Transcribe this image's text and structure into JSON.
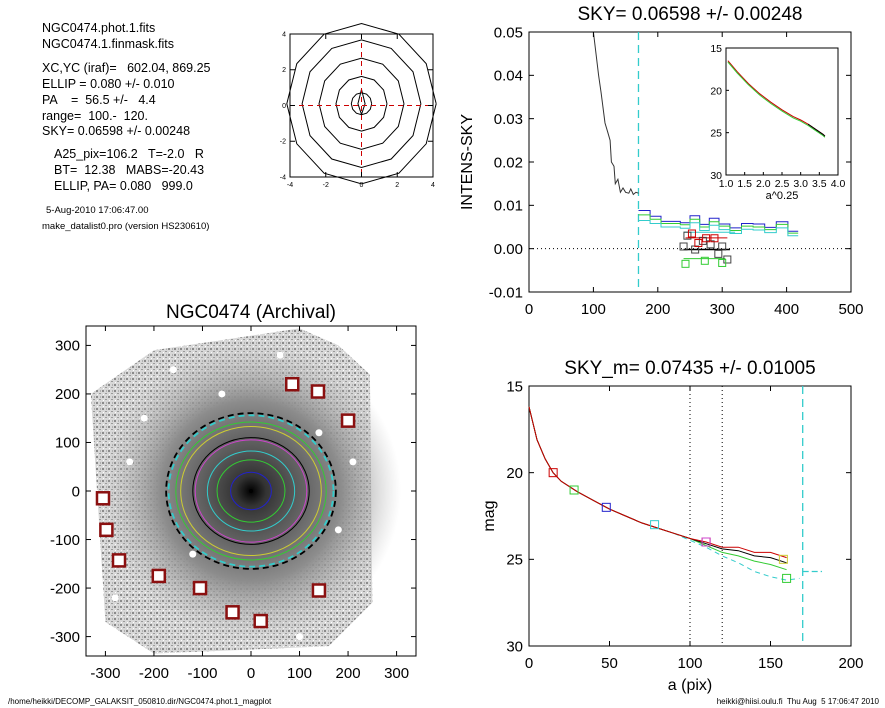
{
  "header_info": {
    "lines": [
      "NGC0474.phot.1.fits",
      "NGC0474.1.finmask.fits",
      "XC,YC (iraf)=   602.04, 869.25",
      "ELLIP = 0.080 +/- 0.010",
      "PA    =  56.5 +/-   4.4",
      "range=  100.-  120.",
      "SKY= 0.06598 +/- 0.00248",
      "A25_pix=106.2   T=-2.0   R",
      "BT=  12.38   MABS=-20.43",
      "ELLIP, PA= 0.080   999.0"
    ],
    "date": "5-Aug-2010 17:06:47.00",
    "program": "make_datalist0.pro (version HS230610)"
  },
  "footer": {
    "left": "/home/heikki/DECOMP_GALAKSIT_050810.dir/NGC0474.phot.1_magplot",
    "right": "heikki@hiisi.oulu.fi  Thu Aug  5 17:06:47 2010"
  },
  "colors": {
    "black": "#000000",
    "red": "#cc0000",
    "green": "#33cc33",
    "blue": "#2222cc",
    "cyan": "#33cccc",
    "magenta": "#cc44cc",
    "yellow": "#cccc33",
    "darkred": "#8b1010",
    "gray": "#777777"
  },
  "chart_data": [
    {
      "id": "contour",
      "type": "contour",
      "xlim": [
        -4,
        4
      ],
      "ylim": [
        -4,
        4
      ],
      "xticks": [
        "-4",
        "-2",
        "0",
        "2",
        "4"
      ],
      "yticks": [
        "-4",
        "-2",
        "0",
        "2",
        "4"
      ],
      "contour_radii": [
        0.6,
        1.5,
        2.5,
        3.5,
        4.4
      ]
    },
    {
      "id": "sky",
      "type": "line",
      "title": "SKY= 0.06598 +/- 0.00248",
      "ylabel": "INTENS-SKY",
      "xlim": [
        0,
        500
      ],
      "ylim": [
        -0.01,
        0.05
      ],
      "xticks": [
        "0",
        "100",
        "200",
        "300",
        "400",
        "500"
      ],
      "yticks": [
        "-0.01",
        "0.00",
        "0.01",
        "0.02",
        "0.03",
        "0.04",
        "0.05"
      ],
      "vline": 170,
      "profile": [
        [
          100,
          0.05
        ],
        [
          108,
          0.04
        ],
        [
          112,
          0.036
        ],
        [
          118,
          0.029
        ],
        [
          122,
          0.027
        ],
        [
          126,
          0.025
        ],
        [
          128,
          0.02
        ],
        [
          132,
          0.019
        ],
        [
          134,
          0.015
        ],
        [
          138,
          0.016
        ],
        [
          142,
          0.013
        ],
        [
          146,
          0.014
        ],
        [
          150,
          0.013
        ],
        [
          155,
          0.0128
        ],
        [
          158,
          0.0138
        ],
        [
          162,
          0.0125
        ],
        [
          166,
          0.013
        ],
        [
          170,
          0.0128
        ]
      ],
      "steps": {
        "blue": [
          [
            170,
            0.0088
          ],
          [
            188,
            0.0075
          ],
          [
            205,
            0.0063
          ],
          [
            220,
            0.0063
          ],
          [
            235,
            0.006
          ],
          [
            250,
            0.0076
          ],
          [
            265,
            0.0056
          ],
          [
            280,
            0.007
          ],
          [
            295,
            0.0057
          ],
          [
            312,
            0.0048
          ],
          [
            330,
            0.0058
          ],
          [
            348,
            0.0057
          ],
          [
            366,
            0.0049
          ],
          [
            384,
            0.0062
          ],
          [
            402,
            0.004
          ],
          [
            418,
            0.004
          ]
        ],
        "green": [
          [
            170,
            0.0078
          ],
          [
            188,
            0.0068
          ],
          [
            205,
            0.0058
          ],
          [
            220,
            0.0058
          ],
          [
            235,
            0.0055
          ],
          [
            250,
            0.0068
          ],
          [
            265,
            0.005
          ],
          [
            280,
            0.0062
          ],
          [
            295,
            0.0052
          ],
          [
            312,
            0.0042
          ],
          [
            330,
            0.0052
          ],
          [
            348,
            0.005
          ],
          [
            366,
            0.0044
          ],
          [
            384,
            0.0056
          ],
          [
            402,
            0.0036
          ],
          [
            418,
            0.0036
          ]
        ],
        "cyan": [
          [
            170,
            0.0065
          ],
          [
            188,
            0.0058
          ],
          [
            205,
            0.005
          ],
          [
            220,
            0.005
          ],
          [
            235,
            0.0047
          ],
          [
            250,
            0.006
          ],
          [
            265,
            0.0042
          ],
          [
            280,
            0.0054
          ],
          [
            295,
            0.0044
          ],
          [
            312,
            0.0035
          ],
          [
            330,
            0.0045
          ],
          [
            348,
            0.0043
          ],
          [
            366,
            0.0037
          ],
          [
            384,
            0.0048
          ],
          [
            402,
            0.003
          ],
          [
            418,
            0.003
          ]
        ]
      },
      "squares": {
        "black": [
          [
            240,
            0.0005
          ],
          [
            246,
            0.003
          ],
          [
            258,
            -0.0002
          ],
          [
            270,
            0.0018
          ],
          [
            282,
            0.001
          ],
          [
            294,
            -0.0012
          ],
          [
            300,
            0.0005
          ],
          [
            308,
            -0.0025
          ]
        ],
        "red": [
          [
            253,
            0.0035
          ],
          [
            263,
            0.0013
          ],
          [
            275,
            0.0024
          ],
          [
            288,
            0.0024
          ]
        ],
        "green": [
          [
            243,
            -0.0035
          ],
          [
            273,
            -0.0028
          ],
          [
            300,
            -0.0033
          ]
        ]
      },
      "hlines": {
        "red": [
          [
            243,
            308,
            0.0025
          ]
        ],
        "black": [
          [
            240,
            312,
            -0.0002
          ]
        ],
        "green": [
          [
            240,
            305,
            -0.0023
          ]
        ],
        "cyan": [
          [
            240,
            320,
            0.0038
          ]
        ]
      },
      "inset": {
        "xlim": [
          1.0,
          4.0
        ],
        "ylim": [
          15,
          30
        ],
        "xticks": [
          "1.0",
          "1.5",
          "2.0",
          "2.5",
          "3.0",
          "3.5",
          "4.0"
        ],
        "yticks": [
          "15",
          "20",
          "25",
          "30"
        ],
        "xlabel": "a^0.25",
        "curve": [
          [
            1.05,
            16.5
          ],
          [
            1.3,
            17.8
          ],
          [
            1.6,
            19.2
          ],
          [
            1.9,
            20.4
          ],
          [
            2.2,
            21.4
          ],
          [
            2.5,
            22.3
          ],
          [
            2.8,
            23.1
          ],
          [
            3.0,
            23.5
          ],
          [
            3.2,
            24.0
          ],
          [
            3.4,
            24.6
          ],
          [
            3.6,
            25.2
          ],
          [
            3.65,
            25.4
          ]
        ]
      }
    },
    {
      "id": "image",
      "type": "image",
      "title": "NGC0474 (Archival)",
      "xlim": [
        -340,
        340
      ],
      "ylim": [
        -340,
        340
      ],
      "xticks": [
        "-300",
        "-200",
        "-100",
        "0",
        "100",
        "200",
        "300"
      ],
      "yticks": [
        "-300",
        "-200",
        "-100",
        "0",
        "100",
        "200",
        "300"
      ],
      "ellipses": [
        {
          "color": "blue",
          "r": 42
        },
        {
          "color": "green",
          "r": 70
        },
        {
          "color": "cyan",
          "r": 90
        },
        {
          "color": "magenta",
          "r": 115
        },
        {
          "color": "black",
          "r": 120
        },
        {
          "color": "yellow",
          "r": 145
        },
        {
          "color": "green",
          "r": 155
        },
        {
          "color": "cyan",
          "r": 170,
          "dashed": true
        },
        {
          "color": "black",
          "r": 175,
          "dashed": true
        }
      ],
      "markers": [
        [
          85,
          220
        ],
        [
          138,
          205
        ],
        [
          200,
          145
        ],
        [
          -305,
          -15
        ],
        [
          -298,
          -80
        ],
        [
          -272,
          -143
        ],
        [
          -190,
          -175
        ],
        [
          -105,
          -200
        ],
        [
          -38,
          -250
        ],
        [
          20,
          -268
        ],
        [
          140,
          -205
        ]
      ]
    },
    {
      "id": "mag",
      "type": "line",
      "title": "SKY_m=  0.07435 +/- 0.01005",
      "xlabel": "a (pix)",
      "ylabel": "mag",
      "xlim": [
        0,
        200
      ],
      "ylim": [
        30,
        15
      ],
      "xticks": [
        "0",
        "50",
        "100",
        "150",
        "200"
      ],
      "yticks": [
        "15",
        "20",
        "25",
        "30"
      ],
      "vlines_dotted": [
        100,
        120
      ],
      "vline_dashed": 170,
      "cyan_seg": [
        [
          170,
          25.7
        ],
        [
          182,
          25.7
        ]
      ],
      "curves": {
        "black": [
          [
            0,
            16.2
          ],
          [
            5,
            18.1
          ],
          [
            10,
            19.2
          ],
          [
            15,
            20.0
          ],
          [
            20,
            20.5
          ],
          [
            30,
            21.1
          ],
          [
            40,
            21.6
          ],
          [
            50,
            22.1
          ],
          [
            60,
            22.5
          ],
          [
            70,
            22.9
          ],
          [
            80,
            23.2
          ],
          [
            90,
            23.5
          ],
          [
            100,
            23.8
          ],
          [
            110,
            24.1
          ],
          [
            120,
            24.4
          ],
          [
            130,
            24.5
          ],
          [
            140,
            24.8
          ],
          [
            150,
            24.9
          ],
          [
            160,
            25.2
          ]
        ],
        "red": [
          [
            0,
            16.2
          ],
          [
            5,
            18.1
          ],
          [
            10,
            19.2
          ],
          [
            15,
            20.0
          ],
          [
            20,
            20.5
          ],
          [
            30,
            21.1
          ],
          [
            40,
            21.6
          ],
          [
            50,
            22.1
          ],
          [
            60,
            22.5
          ],
          [
            70,
            22.9
          ],
          [
            80,
            23.2
          ],
          [
            90,
            23.5
          ],
          [
            100,
            23.8
          ],
          [
            110,
            24.0
          ],
          [
            120,
            24.3
          ],
          [
            130,
            24.3
          ],
          [
            140,
            24.6
          ],
          [
            150,
            24.6
          ],
          [
            160,
            24.9
          ]
        ],
        "green": [
          [
            0,
            16.2
          ],
          [
            5,
            18.1
          ],
          [
            10,
            19.2
          ],
          [
            15,
            20.0
          ],
          [
            20,
            20.5
          ],
          [
            30,
            21.1
          ],
          [
            40,
            21.6
          ],
          [
            50,
            22.1
          ],
          [
            60,
            22.5
          ],
          [
            70,
            22.9
          ],
          [
            80,
            23.2
          ],
          [
            90,
            23.5
          ],
          [
            100,
            23.8
          ],
          [
            110,
            24.2
          ],
          [
            120,
            24.6
          ],
          [
            130,
            24.8
          ],
          [
            140,
            25.1
          ],
          [
            150,
            25.3
          ],
          [
            160,
            25.6
          ]
        ],
        "cyan": [
          [
            90,
            23.5
          ],
          [
            100,
            23.9
          ],
          [
            110,
            24.3
          ],
          [
            120,
            24.8
          ],
          [
            130,
            25.2
          ],
          [
            140,
            25.7
          ],
          [
            150,
            26.0
          ],
          [
            160,
            26.2
          ],
          [
            168,
            26.1
          ]
        ]
      },
      "squares": {
        "red": [
          [
            15,
            20.0
          ],
          [
            110,
            24.0
          ]
        ],
        "green": [
          [
            28,
            21.0
          ],
          [
            160,
            26.1
          ]
        ],
        "blue": [
          [
            48,
            22.0
          ]
        ],
        "cyan": [
          [
            78,
            23.0
          ]
        ],
        "magenta": [
          [
            110,
            24.0
          ]
        ],
        "yellow": [
          [
            158,
            25.0
          ]
        ]
      }
    }
  ]
}
